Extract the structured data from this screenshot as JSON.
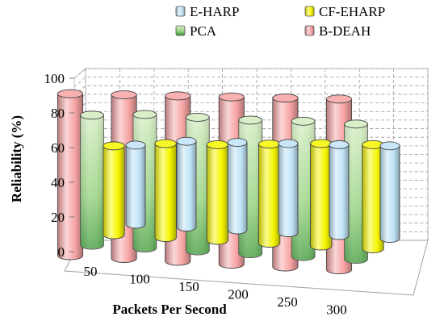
{
  "chart_data": {
    "type": "bar",
    "categories": [
      "50",
      "100",
      "150",
      "200",
      "250",
      "300"
    ],
    "series": [
      {
        "name": "E-HARP",
        "values": [
          47,
          51,
          52,
          53,
          54,
          55
        ],
        "color": "#bfe3f7"
      },
      {
        "name": "CF-EHARP",
        "values": [
          52,
          55,
          56,
          58,
          60,
          61
        ],
        "color": "#f5f500"
      },
      {
        "name": "PCA",
        "values": [
          75,
          77,
          77,
          77,
          78,
          78
        ],
        "color": "#d3ecc0"
      },
      {
        "name": "B-DEAH",
        "values": [
          92,
          93,
          94,
          95,
          96,
          97
        ],
        "color": "#f7a3a3"
      }
    ],
    "xlabel": "Packets Per Second",
    "ylabel": "Reliability (%)",
    "ylim": [
      0,
      100
    ],
    "yticks": [
      "0",
      "20",
      "40",
      "60",
      "80",
      "100"
    ],
    "grid": true,
    "legend_position": "top"
  }
}
